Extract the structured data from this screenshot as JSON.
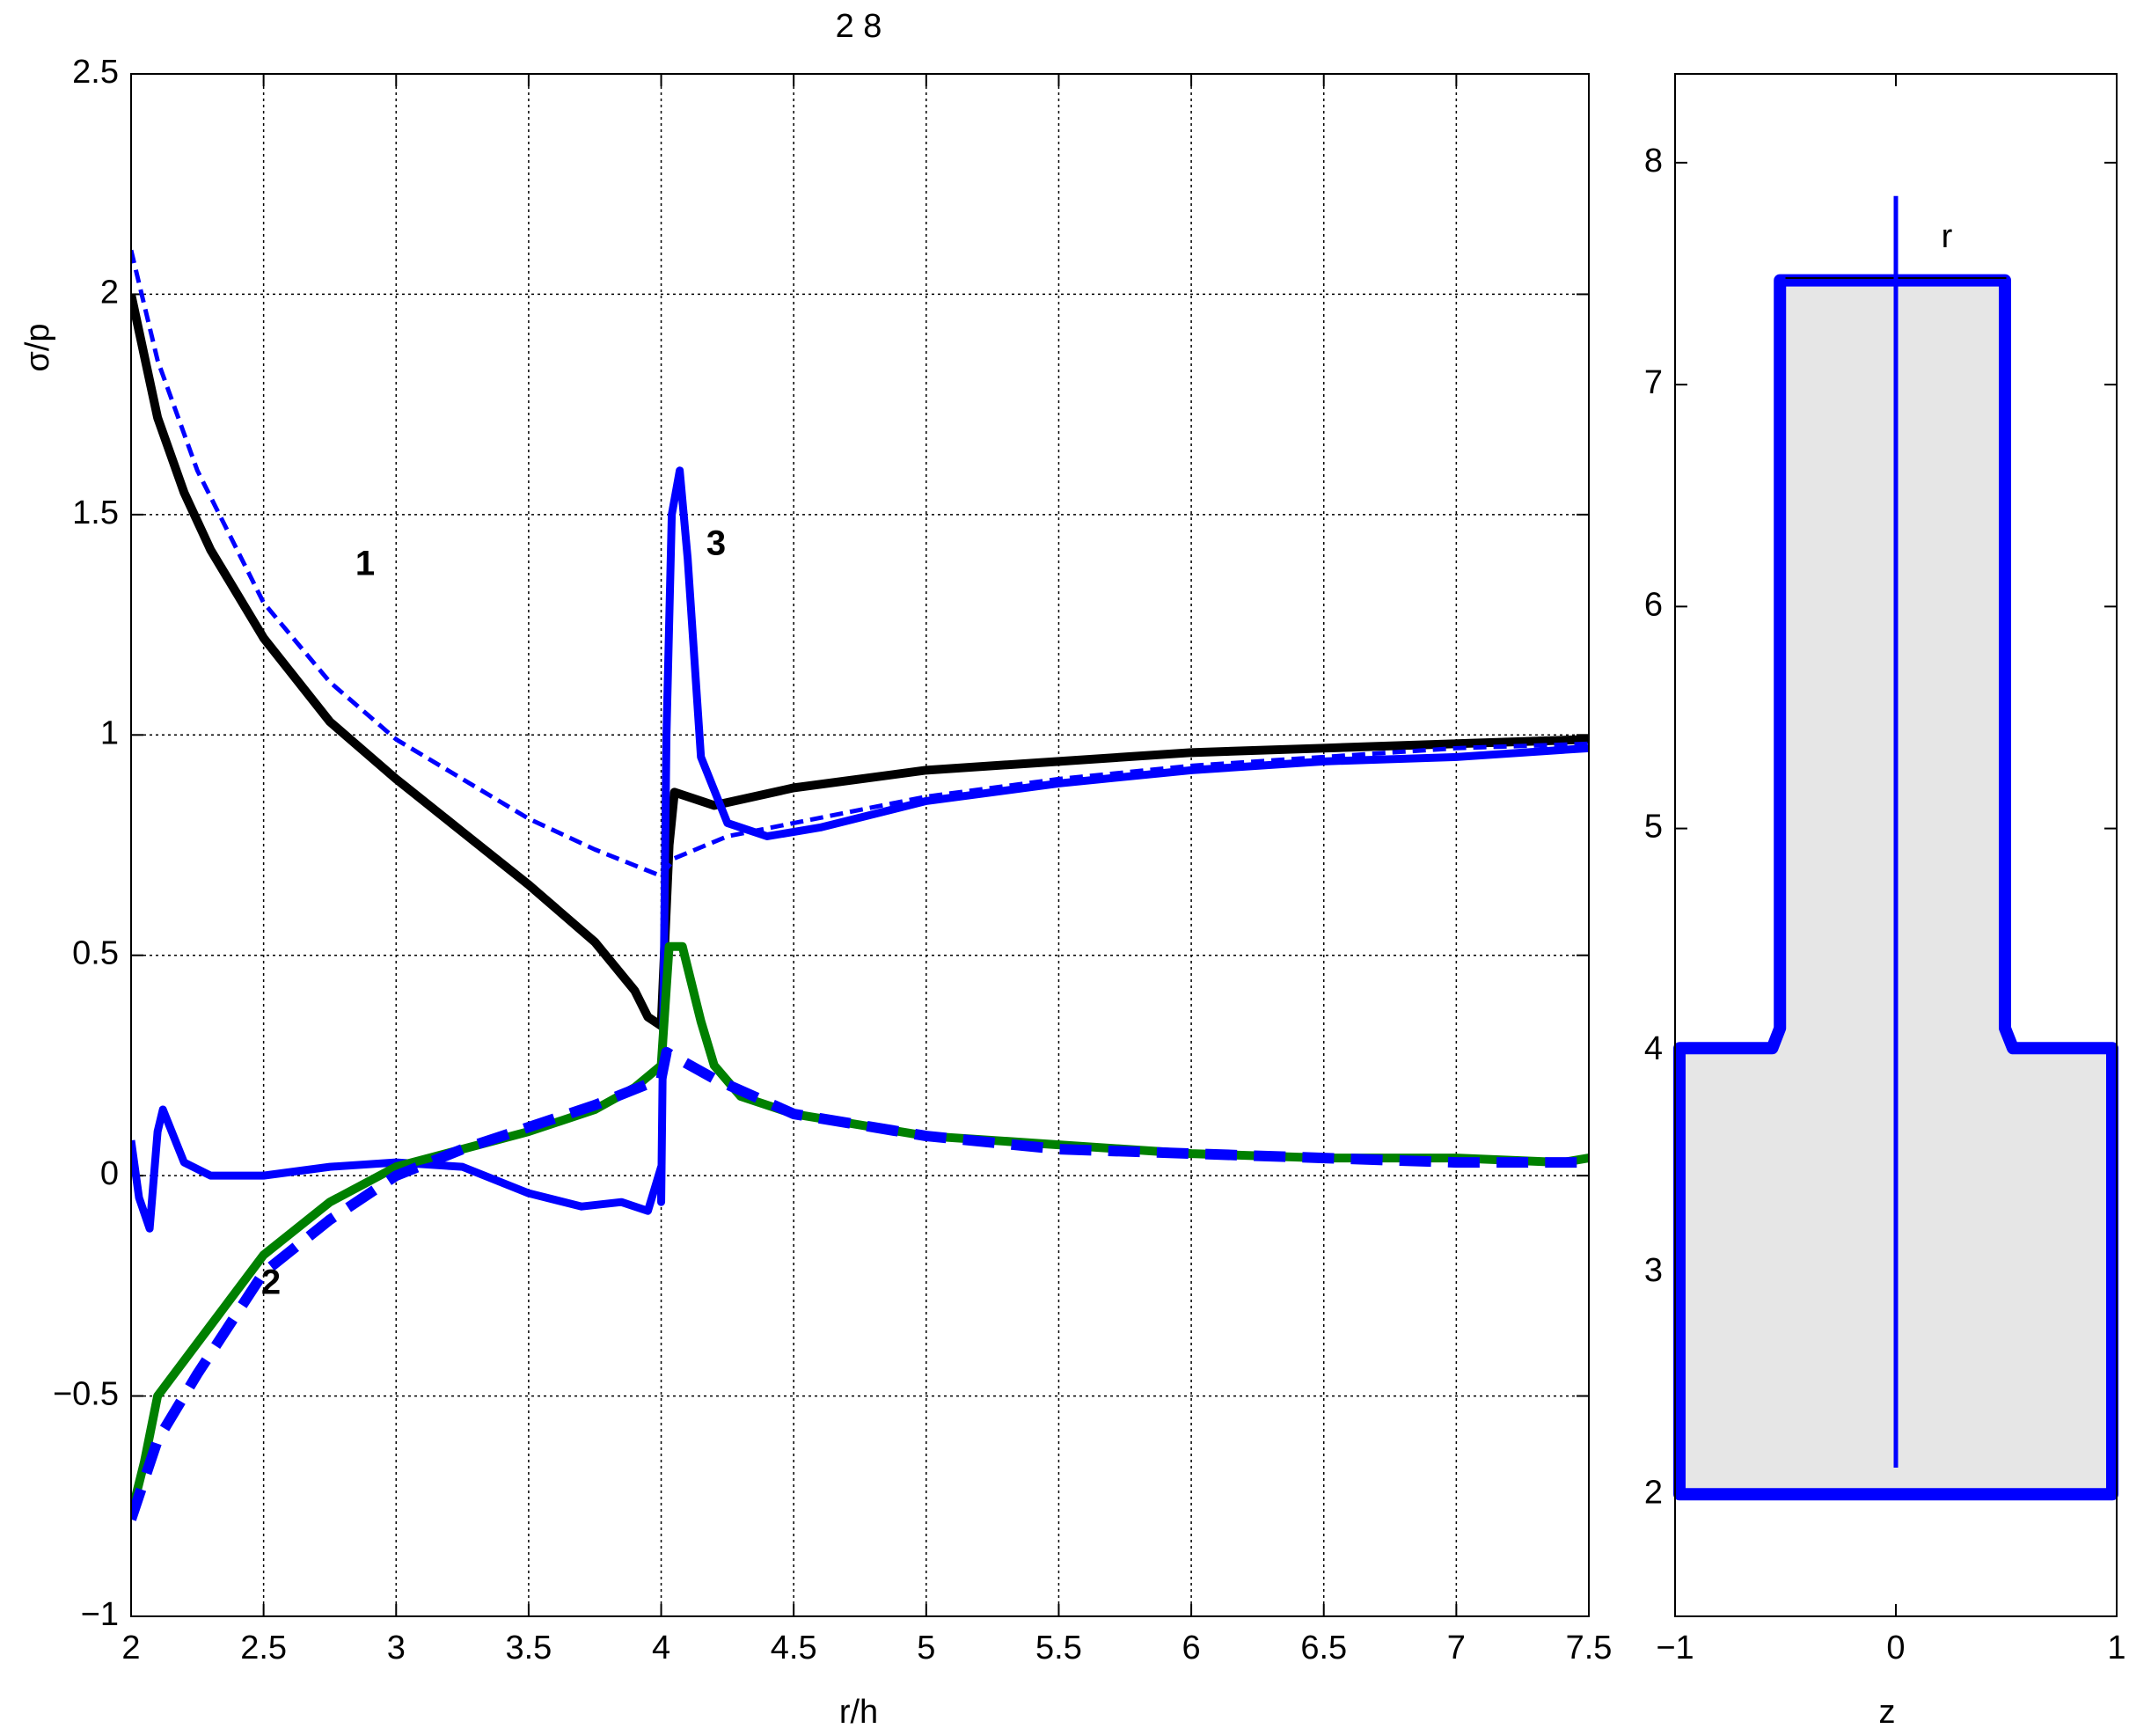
{
  "chart_data": [
    {
      "type": "line",
      "title": "2  8",
      "xlabel": "r/h",
      "ylabel": "σ/p",
      "xlim": [
        2,
        7.5
      ],
      "xticks": [
        2,
        2.5,
        3,
        3.5,
        4,
        4.5,
        5,
        5.5,
        6,
        6.5,
        7,
        7.5
      ],
      "ylim": [
        -1,
        2.5
      ],
      "yticks": [
        {
          "value": -1,
          "label": "−1"
        },
        {
          "value": -0.5,
          "label": "−0.5"
        },
        0,
        0.5,
        1,
        1.5,
        2,
        2.5
      ],
      "grid": true,
      "annotations": [
        "1",
        "2",
        "3"
      ],
      "series": [
        {
          "color": "#000000",
          "linestyle": "-",
          "linewidth": 10,
          "x": [
            2,
            2.1,
            2.2,
            2.3,
            2.5,
            2.75,
            3,
            3.25,
            3.5,
            3.75,
            3.9,
            3.95,
            4.0,
            4.03,
            4.05,
            4.1,
            4.2,
            4.5,
            5,
            5.5,
            6,
            6.5,
            7,
            7.5
          ],
          "values": [
            2.0,
            1.72,
            1.55,
            1.42,
            1.22,
            1.03,
            0.9,
            0.78,
            0.66,
            0.53,
            0.42,
            0.36,
            0.34,
            0.75,
            0.87,
            0.86,
            0.84,
            0.88,
            0.92,
            0.94,
            0.96,
            0.97,
            0.98,
            0.99
          ]
        },
        {
          "color": "#0000ff",
          "linestyle": "--",
          "linewidth": 5,
          "x": [
            2,
            2.1,
            2.25,
            2.5,
            2.75,
            3,
            3.25,
            3.5,
            3.75,
            4,
            4.05,
            4.25,
            4.5,
            5,
            5.5,
            6,
            6.5,
            7,
            7.5
          ],
          "values": [
            2.1,
            1.85,
            1.6,
            1.3,
            1.12,
            0.99,
            0.9,
            0.81,
            0.74,
            0.68,
            0.72,
            0.77,
            0.8,
            0.86,
            0.9,
            0.93,
            0.95,
            0.97,
            0.98
          ]
        },
        {
          "color": "#0000ff",
          "linestyle": "-",
          "linewidth": 9,
          "x": [
            2,
            2.03,
            2.07,
            2.1,
            2.12,
            2.2,
            2.3,
            2.5,
            2.75,
            3,
            3.25,
            3.5,
            3.7,
            3.85,
            3.95,
            4.0,
            4.0,
            4.02,
            4.04,
            4.07,
            4.1,
            4.15,
            4.25,
            4.4,
            4.6,
            5,
            5.5,
            6,
            6.5,
            7,
            7.5
          ],
          "values": [
            0.08,
            -0.05,
            -0.12,
            0.1,
            0.15,
            0.03,
            0.0,
            0.0,
            0.02,
            0.03,
            0.02,
            -0.04,
            -0.07,
            -0.06,
            -0.08,
            0.02,
            -0.06,
            1.0,
            1.5,
            1.6,
            1.4,
            0.95,
            0.8,
            0.77,
            0.79,
            0.85,
            0.89,
            0.92,
            0.94,
            0.95,
            0.97
          ]
        },
        {
          "color": "#008000",
          "linestyle": "-",
          "linewidth": 10,
          "x": [
            2,
            2.05,
            2.1,
            2.2,
            2.3,
            2.5,
            2.75,
            3,
            3.25,
            3.5,
            3.75,
            3.9,
            4,
            4.03,
            4.08,
            4.15,
            4.2,
            4.3,
            4.5,
            5,
            5.5,
            6,
            6.5,
            7,
            7.4,
            7.5
          ],
          "values": [
            -0.77,
            -0.65,
            -0.5,
            -0.42,
            -0.34,
            -0.18,
            -0.06,
            0.02,
            0.06,
            0.1,
            0.15,
            0.2,
            0.25,
            0.52,
            0.52,
            0.35,
            0.25,
            0.18,
            0.14,
            0.09,
            0.07,
            0.05,
            0.04,
            0.04,
            0.03,
            0.04
          ]
        },
        {
          "color": "#0000ff",
          "linestyle": "--",
          "linewidth": 12,
          "x": [
            2,
            2.1,
            2.25,
            2.5,
            2.75,
            3,
            3.25,
            3.5,
            3.75,
            4,
            4.02,
            4.2,
            4.5,
            5,
            5.5,
            6,
            6.5,
            7,
            7.5
          ],
          "values": [
            -0.78,
            -0.6,
            -0.45,
            -0.22,
            -0.1,
            0.0,
            0.06,
            0.11,
            0.16,
            0.22,
            0.28,
            0.22,
            0.14,
            0.09,
            0.06,
            0.05,
            0.04,
            0.03,
            0.03
          ]
        }
      ]
    },
    {
      "type": "line",
      "xlabel": "z",
      "xlim": [
        -1,
        1
      ],
      "xticks": [
        {
          "value": -1,
          "label": "−1"
        },
        0,
        1
      ],
      "ylim": [
        1.45,
        8.4
      ],
      "yticks": [
        2,
        3,
        4,
        5,
        6,
        7,
        8
      ],
      "grid": false,
      "annotations": [
        "r"
      ],
      "series": [
        {
          "color": "#0000ff",
          "fill": "#e6e6e6",
          "linestyle": "-",
          "linewidth": 14,
          "x": [
            -0.525,
            -0.525,
            -0.56,
            -0.98,
            -0.98,
            0.98,
            0.98,
            0.53,
            0.494,
            0.494
          ],
          "values": [
            7.47,
            4.1,
            4.01,
            4.01,
            2.0,
            2.0,
            4.01,
            4.01,
            4.1,
            7.47
          ]
        },
        {
          "color": "#000000",
          "linestyle": "-",
          "linewidth": 2,
          "x": [
            -0.5,
            0.5
          ],
          "values": [
            7.48,
            7.48
          ]
        },
        {
          "color": "#0000ff",
          "linestyle": "-",
          "linewidth": 5,
          "x": [
            0,
            0
          ],
          "values": [
            2.12,
            7.85
          ]
        }
      ]
    }
  ]
}
